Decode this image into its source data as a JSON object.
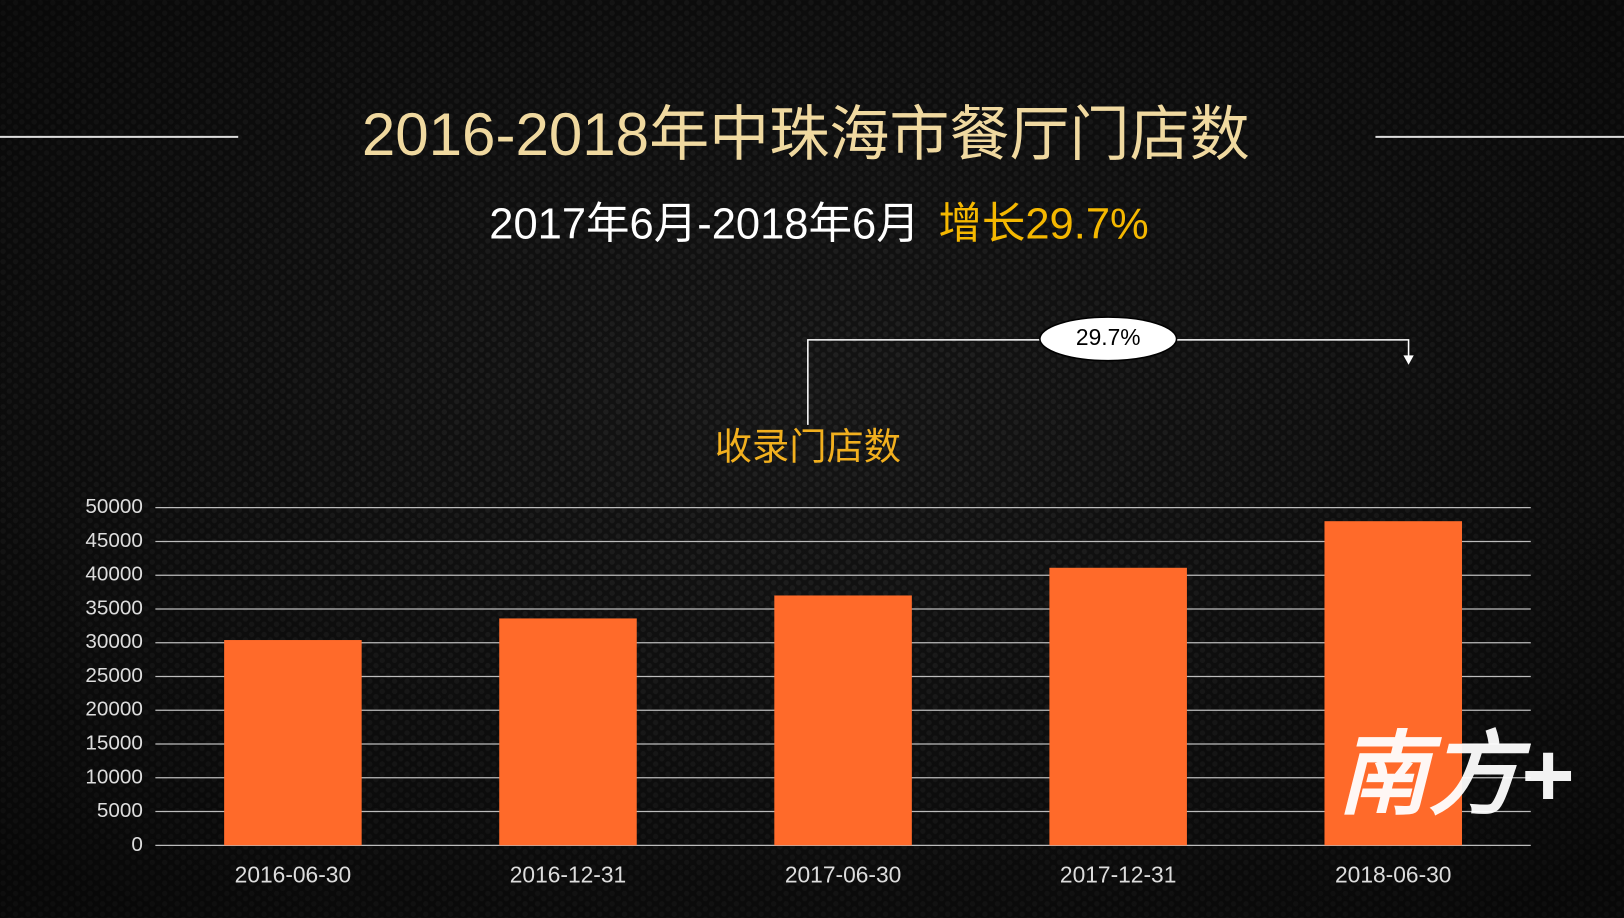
{
  "chart_data": {
    "type": "bar",
    "title": "2016-2018年中珠海市餐厅门店数",
    "subtitle": "2017年6月-2018年6月",
    "highlight": "增长29.7%",
    "annotation": "29.7%",
    "watermark": "南方+",
    "categories": [
      "2016-06-30",
      "2016-12-31",
      "2017-06-30",
      "2017-12-31",
      "2018-06-30"
    ],
    "series": [
      {
        "name": "收录门店数",
        "color": "#ff6a2a",
        "values": [
          30400,
          33600,
          37000,
          41100,
          48000
        ]
      }
    ],
    "ylim": [
      0,
      50000
    ],
    "yticks": [
      0,
      5000,
      10000,
      15000,
      20000,
      25000,
      30000,
      35000,
      40000,
      45000,
      50000
    ],
    "grid": true
  }
}
